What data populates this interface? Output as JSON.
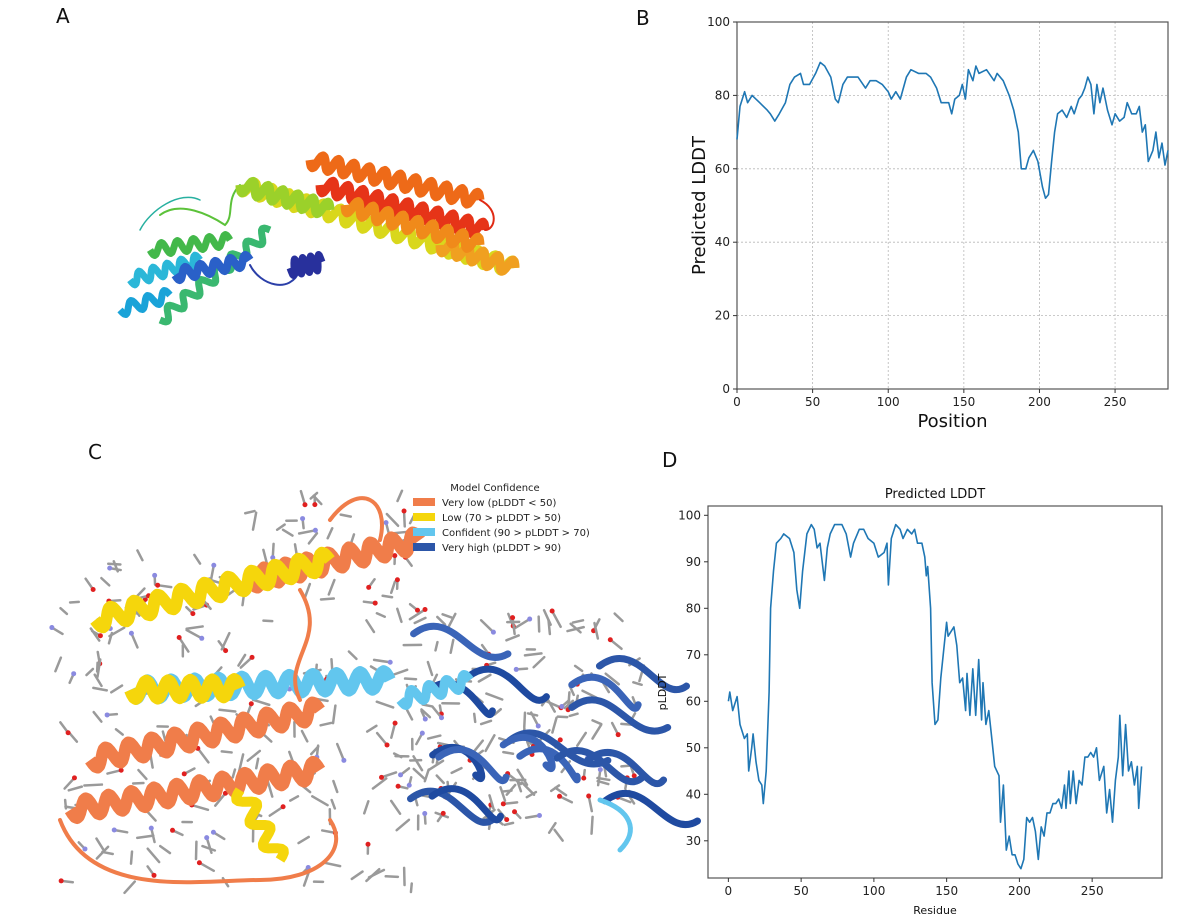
{
  "panels": {
    "a": "A",
    "b": "B",
    "c": "C",
    "d": "D"
  },
  "legend": {
    "title": "Model Confidence",
    "items": [
      {
        "label": "Very low (pLDDT < 50)",
        "color": "#f07d4a"
      },
      {
        "label": "Low (70 > pLDDT > 50)",
        "color": "#f5d60c"
      },
      {
        "label": "Confident (90 > pLDDT > 70)",
        "color": "#62c6ee"
      },
      {
        "label": "Very high (pLDDT > 90)",
        "color": "#2c56a8"
      }
    ]
  },
  "chart_data": [
    {
      "type": "line",
      "panel": "B",
      "title": "",
      "xlabel": "Position",
      "ylabel": "Predicted LDDT",
      "xlim": [
        0,
        285
      ],
      "ylim": [
        0,
        100
      ],
      "xticks": [
        0,
        50,
        100,
        150,
        200,
        250
      ],
      "yticks": [
        0,
        20,
        40,
        60,
        80,
        100
      ],
      "grid": true,
      "color": "#1f77b4",
      "x": [
        0,
        2,
        5,
        7,
        10,
        15,
        20,
        22,
        25,
        28,
        32,
        35,
        38,
        42,
        44,
        48,
        52,
        55,
        58,
        62,
        65,
        67,
        70,
        73,
        76,
        80,
        85,
        88,
        92,
        96,
        100,
        102,
        105,
        108,
        112,
        115,
        120,
        125,
        128,
        132,
        135,
        140,
        142,
        144,
        147,
        149,
        151,
        153,
        156,
        158,
        160,
        165,
        170,
        172,
        176,
        180,
        183,
        186,
        188,
        191,
        193,
        196,
        199,
        202,
        204,
        206,
        208,
        210,
        212,
        215,
        218,
        221,
        223,
        226,
        228,
        230,
        232,
        234,
        236,
        238,
        240,
        242,
        245,
        248,
        250,
        253,
        256,
        258,
        261,
        264,
        266,
        268,
        270,
        272,
        275,
        277,
        279,
        281,
        283,
        285
      ],
      "y": [
        68,
        77,
        81,
        78,
        80,
        78,
        76,
        75,
        73,
        75,
        78,
        83,
        85,
        86,
        83,
        83,
        86,
        89,
        88,
        85,
        79,
        78,
        83,
        85,
        85,
        85,
        82,
        84,
        84,
        83,
        81,
        79,
        81,
        79,
        85,
        87,
        86,
        86,
        85,
        82,
        78,
        78,
        75,
        79,
        80,
        83,
        79,
        87,
        84,
        88,
        86,
        87,
        84,
        86,
        84,
        80,
        76,
        70,
        60,
        60,
        63,
        65,
        62,
        55,
        52,
        53,
        62,
        70,
        75,
        76,
        74,
        77,
        75,
        79,
        80,
        82,
        85,
        83,
        75,
        83,
        78,
        82,
        76,
        72,
        75,
        73,
        74,
        78,
        75,
        75,
        77,
        70,
        72,
        62,
        65,
        70,
        63,
        67,
        61,
        65
      ]
    },
    {
      "type": "line",
      "panel": "D",
      "title": "Predicted LDDT",
      "xlabel": "Residue",
      "ylabel": "pLDDT",
      "xlim": [
        -14,
        298
      ],
      "ylim": [
        22,
        102
      ],
      "xticks": [
        0,
        50,
        100,
        150,
        200,
        250
      ],
      "yticks": [
        30,
        40,
        50,
        60,
        70,
        80,
        90,
        100
      ],
      "grid": false,
      "color": "#1f77b4",
      "x": [
        0,
        1,
        3,
        6,
        8,
        11,
        13,
        14,
        16,
        17,
        19,
        21,
        23,
        24,
        26,
        28,
        29,
        31,
        33,
        36,
        38,
        42,
        45,
        47,
        49,
        51,
        54,
        57,
        59,
        61,
        63,
        66,
        68,
        70,
        73,
        78,
        81,
        84,
        86,
        90,
        93,
        96,
        100,
        103,
        107,
        109,
        110,
        112,
        115,
        118,
        120,
        123,
        126,
        128,
        130,
        133,
        135,
        136,
        137,
        139,
        140,
        142,
        144,
        146,
        148,
        150,
        151,
        155,
        157,
        159,
        161,
        163,
        164,
        166,
        168,
        170,
        172,
        174,
        175,
        177,
        179,
        181,
        183,
        186,
        187,
        189,
        191,
        193,
        195,
        197,
        199,
        201,
        203,
        205,
        207,
        209,
        211,
        213,
        215,
        217,
        219,
        221,
        223,
        225,
        227,
        229,
        231,
        232,
        234,
        235,
        237,
        239,
        241,
        243,
        245,
        247,
        249,
        251,
        253,
        255,
        258,
        260,
        262,
        264,
        266,
        268,
        269,
        271,
        273,
        275,
        277,
        279,
        281,
        282,
        284
      ],
      "y": [
        60,
        62,
        58,
        61,
        55,
        52,
        53,
        45,
        50,
        53,
        47,
        43,
        42,
        38,
        45,
        62,
        80,
        88,
        94,
        95,
        96,
        95,
        92,
        84,
        80,
        88,
        96,
        98,
        97,
        93,
        94,
        86,
        93,
        96,
        98,
        98,
        96,
        91,
        94,
        97,
        97,
        95,
        94,
        91,
        92,
        94,
        85,
        95,
        98,
        97,
        95,
        97,
        96,
        97,
        94,
        94,
        91,
        87,
        89,
        80,
        64,
        55,
        56,
        65,
        71,
        77,
        74,
        76,
        72,
        64,
        65,
        58,
        66,
        57,
        67,
        57,
        69,
        56,
        64,
        55,
        58,
        52,
        46,
        44,
        34,
        42,
        28,
        31,
        27,
        27,
        25,
        24,
        26,
        35,
        34,
        35,
        32,
        26,
        33,
        31,
        36,
        36,
        38,
        38,
        39,
        37,
        42,
        37,
        45,
        38,
        45,
        38,
        43,
        42,
        48,
        48,
        49,
        48,
        50,
        43,
        46,
        36,
        41,
        34,
        43,
        48,
        57,
        44,
        55,
        45,
        47,
        42,
        46,
        37,
        46
      ]
    }
  ]
}
